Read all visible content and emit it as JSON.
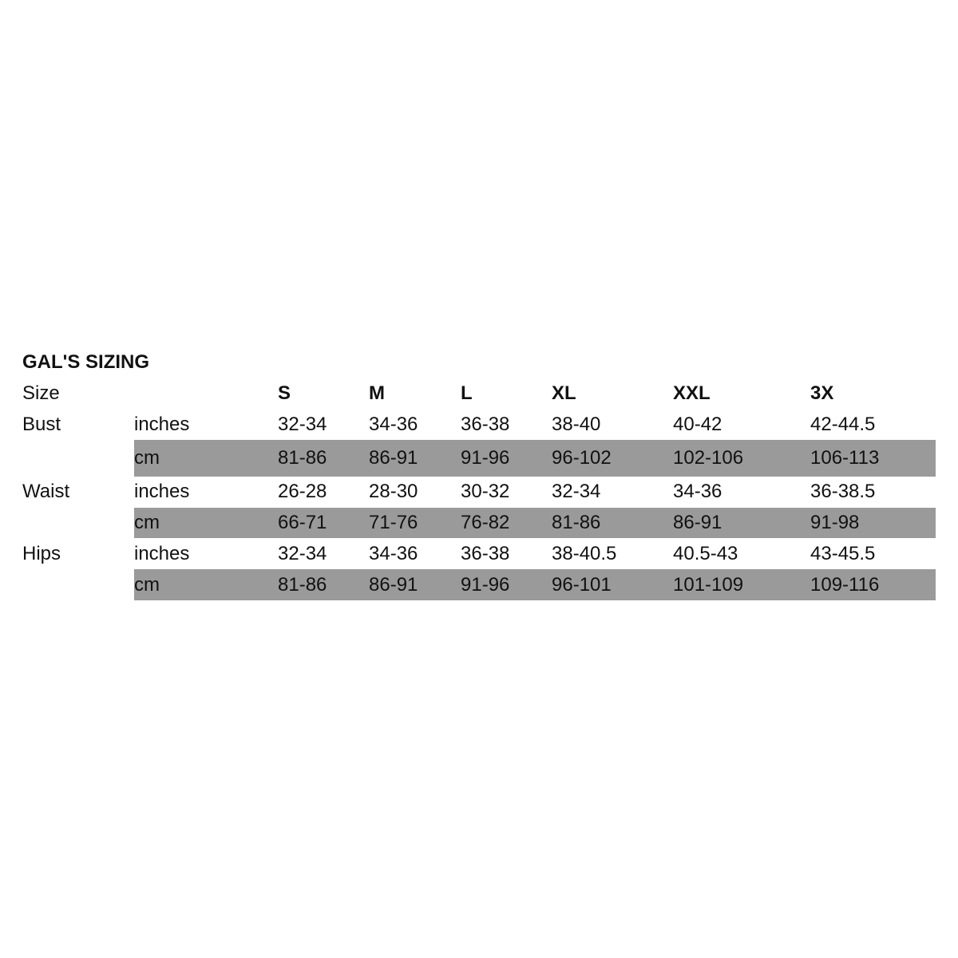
{
  "title": "GAL'S SIZING",
  "header": {
    "label": "Size",
    "sizes": [
      "S",
      "M",
      "L",
      "XL",
      "XXL",
      "3X"
    ]
  },
  "rows": [
    {
      "measure": "Bust",
      "unit": "inches",
      "values": [
        "32-34",
        "34-36",
        "36-38",
        "38-40",
        "40-42",
        "42-44.5"
      ],
      "shaded": false
    },
    {
      "measure": "",
      "unit": "cm",
      "values": [
        "81-86",
        "86-91",
        "91-96",
        "96-102",
        "102-106",
        "106-113"
      ],
      "shaded": true
    },
    {
      "measure": "Waist",
      "unit": "inches",
      "values": [
        "26-28",
        "28-30",
        "30-32",
        "32-34",
        "34-36",
        "36-38.5"
      ],
      "shaded": false
    },
    {
      "measure": "",
      "unit": "cm",
      "values": [
        "66-71",
        "71-76",
        "76-82",
        "81-86",
        "86-91",
        "91-98"
      ],
      "shaded": true
    },
    {
      "measure": "Hips",
      "unit": "inches",
      "values": [
        "32-34",
        "34-36",
        "36-38",
        "38-40.5",
        "40.5-43",
        "43-45.5"
      ],
      "shaded": false
    },
    {
      "measure": "",
      "unit": "cm",
      "values": [
        "81-86",
        "86-91",
        "91-96",
        "96-101",
        "101-109",
        "109-116"
      ],
      "shaded": true
    }
  ],
  "colors": {
    "shade": "#9a9a9a",
    "text": "#111111"
  }
}
